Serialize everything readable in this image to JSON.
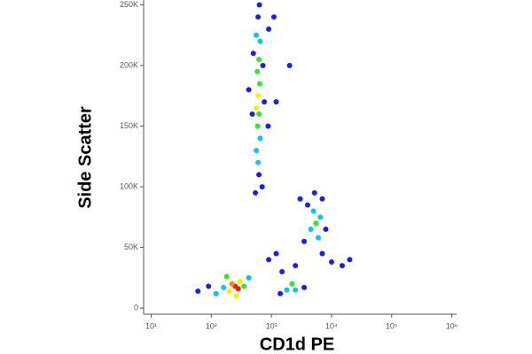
{
  "chart_data": {
    "type": "scatter",
    "x_label": "CD1d PE",
    "y_label": "Side Scatter",
    "x_log": true,
    "xlim": [
      7.5,
      1200000
    ],
    "xticks": [
      {
        "value": 10,
        "label": "10¹"
      },
      {
        "value": 100,
        "label": "10²"
      },
      {
        "value": 1000,
        "label": "10³"
      },
      {
        "value": 10000,
        "label": "10⁴"
      },
      {
        "value": 100000,
        "label": "10⁵"
      },
      {
        "value": 1000000,
        "label": "10⁶"
      }
    ],
    "ylim": [
      -5000,
      254000
    ],
    "yticks": [
      {
        "value": 0,
        "label": "0"
      },
      {
        "value": 50000,
        "label": "50K"
      },
      {
        "value": 100000,
        "label": "100K"
      },
      {
        "value": 150000,
        "label": "150K"
      },
      {
        "value": 200000,
        "label": "200K"
      },
      {
        "value": 250000,
        "label": "250K"
      }
    ],
    "x": [
      600,
      560,
      650,
      620,
      580,
      640,
      600,
      560,
      620,
      590,
      650,
      560,
      600,
      620,
      700,
      500,
      720,
      480,
      760,
      540,
      900,
      880,
      420,
      630,
      250,
      280,
      220,
      300,
      200,
      350,
      160,
      120,
      90,
      60,
      420,
      180,
      260,
      1800,
      2500,
      1400,
      3500,
      2200,
      5500,
      4500,
      6500,
      5000,
      6000,
      4000,
      8000,
      3500,
      7000,
      5200,
      10000,
      15000,
      7000,
      1200,
      900,
      2500,
      1500,
      20000,
      3000,
      1200,
      1100,
      2000
    ],
    "values": [
      240000,
      225000,
      220000,
      205000,
      195000,
      185000,
      175000,
      165000,
      160000,
      150000,
      140000,
      130000,
      120000,
      110000,
      100000,
      210000,
      200000,
      160000,
      170000,
      95000,
      230000,
      150000,
      180000,
      250000,
      18000,
      16000,
      20000,
      22000,
      14000,
      18000,
      17000,
      12000,
      18000,
      14000,
      25000,
      26000,
      10000,
      15000,
      15000,
      12000,
      17000,
      20000,
      70000,
      65000,
      75000,
      80000,
      58000,
      85000,
      65000,
      55000,
      90000,
      95000,
      38000,
      35000,
      45000,
      45000,
      40000,
      35000,
      30000,
      40000,
      90000,
      170000,
      240000,
      200000
    ],
    "colors": [
      "#1a1aff",
      "#00c8ff",
      "#00c8ff",
      "#2ee82e",
      "#2ee82e",
      "#2ee82e",
      "#f5f000",
      "#f5f000",
      "#2ee82e",
      "#2ee82e",
      "#00c8ff",
      "#00c8ff",
      "#00c8ff",
      "#1a1aff",
      "#1a1aff",
      "#1a1aff",
      "#1a1aff",
      "#1a1aff",
      "#1a1aff",
      "#1a1aff",
      "#1a1aff",
      "#1a1aff",
      "#1a1aff",
      "#1a1aff",
      "#ff1a00",
      "#ff1a00",
      "#ff8c00",
      "#f5f000",
      "#f5f000",
      "#2ee82e",
      "#00c8ff",
      "#00c8ff",
      "#1a1aff",
      "#1a1aff",
      "#00c8ff",
      "#2ee82e",
      "#f5f000",
      "#00c8ff",
      "#00c8ff",
      "#1a1aff",
      "#1a1aff",
      "#2ee82e",
      "#2ee82e",
      "#00c8ff",
      "#00c8ff",
      "#00c8ff",
      "#00c8ff",
      "#1a1aff",
      "#1a1aff",
      "#1a1aff",
      "#1a1aff",
      "#1a1aff",
      "#1a1aff",
      "#1a1aff",
      "#1a1aff",
      "#1a1aff",
      "#1a1aff",
      "#1a1aff",
      "#1a1aff",
      "#1a1aff",
      "#1a1aff",
      "#1a1aff",
      "#1a1aff",
      "#1a1aff"
    ]
  }
}
